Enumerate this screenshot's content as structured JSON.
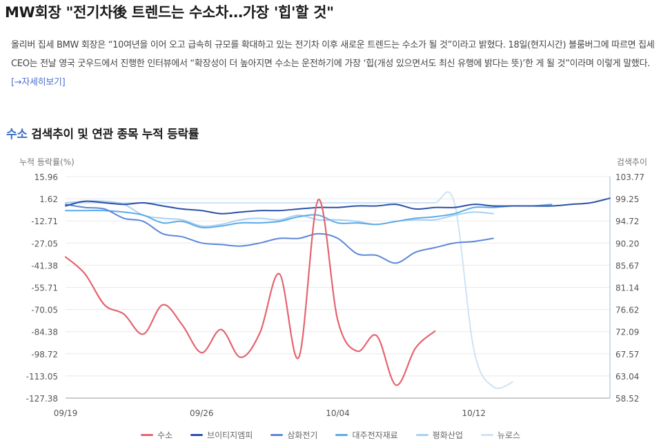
{
  "headline": "MW회장 \"전기차後 트렌드는 수소차…가장 '힙'할 것\"",
  "article": {
    "body": "올리버 집세 BMW 회장은 “10여년을 이어 오고 급속히 규모를 확대하고 있는 전기차 이후 새로운 트렌드는 수소가 될 것”이라고 밝혔다. 18일(현지시간) 블룸버그에 따르면 집세 CEO는 전날 영국 굿우드에서 진행한 인터뷰에서 “확장성이 더 높아지면 수소는 운전하기에 가장 ‘힙(개성 있으면서도 최신 유행에 밝다는 뜻)’한 게 될 것”이라며 이렇게 말했다.",
    "more_link": "[→자세히보기]"
  },
  "section_title": {
    "keyword": "수소",
    "rest": " 검색추이 및 연관 종목 누적 등락률"
  },
  "chart_data": {
    "type": "line",
    "ylabel": "누적 등락률(%)",
    "y2label": "검색추이",
    "ylim": [
      -127.38,
      15.96
    ],
    "y2lim": [
      58.52,
      103.77
    ],
    "y_ticks": [
      "15.96",
      "1.62",
      "-12.71",
      "-27.05",
      "-41.38",
      "-55.71",
      "-70.05",
      "-84.38",
      "-98.72",
      "-113.05",
      "-127.38"
    ],
    "y2_ticks": [
      "103.77",
      "99.25",
      "94.72",
      "90.20",
      "85.67",
      "81.14",
      "76.62",
      "72.09",
      "67.57",
      "63.04",
      "58.52"
    ],
    "x_tick_labels": [
      {
        "day": 0,
        "label": "09/19"
      },
      {
        "day": 7,
        "label": "09/26"
      },
      {
        "day": 14,
        "label": "10/04"
      },
      {
        "day": 21,
        "label": "10/12"
      }
    ],
    "x_range": [
      0,
      28
    ],
    "series": [
      {
        "name": "수소",
        "color": "#e4636f",
        "axis": "left",
        "width": 2.2,
        "x": [
          0,
          1,
          2,
          3,
          4,
          5,
          6,
          7,
          8,
          9,
          10,
          11,
          12,
          13,
          14,
          15,
          16,
          17,
          18,
          19,
          20,
          21,
          22,
          23,
          24,
          25,
          26
        ],
        "values": [
          -36,
          -47,
          -67,
          -73,
          -86,
          -67,
          -80,
          -98,
          -83,
          -101,
          -85,
          -47,
          -101,
          1,
          -77,
          -97,
          -87,
          -119,
          -95,
          -84,
          null,
          null,
          null,
          null,
          null,
          null,
          null
        ]
      },
      {
        "name": "브이티지엠피",
        "color": "#2a4fa8",
        "axis": "left",
        "width": 2,
        "x": [
          0,
          1,
          2,
          3,
          4,
          5,
          6,
          7,
          8,
          9,
          10,
          11,
          12,
          13,
          14,
          15,
          16,
          17,
          18,
          19,
          20,
          21,
          22,
          23,
          24,
          25,
          26,
          27,
          28
        ],
        "values": [
          -3,
          0,
          -1,
          -2,
          -1,
          -3,
          -5,
          -6,
          -8,
          -7,
          -6,
          -6,
          -5,
          -4,
          -4,
          -3,
          -3,
          -2,
          -5,
          -4,
          -4,
          -2,
          -3,
          -3,
          -3,
          -3,
          -2,
          -1,
          2
        ]
      },
      {
        "name": "삼화전기",
        "color": "#5b86d8",
        "axis": "left",
        "width": 2,
        "x": [
          0,
          1,
          2,
          3,
          4,
          5,
          6,
          7,
          8,
          9,
          10,
          11,
          12,
          13,
          14,
          15,
          16,
          17,
          18,
          19,
          20,
          21,
          22,
          23,
          24,
          25,
          26,
          27,
          28
        ],
        "values": [
          -2,
          -4,
          -5,
          -11,
          -13,
          -21,
          -23,
          -27,
          -28,
          -29,
          -27,
          -24,
          -24,
          -21,
          -24,
          -34,
          -35,
          -40,
          -33,
          -30,
          -27,
          -26,
          -24,
          null,
          null,
          null,
          null,
          null,
          null
        ]
      },
      {
        "name": "대주전자재료",
        "color": "#5aaae8",
        "axis": "left",
        "width": 2,
        "x": [
          0,
          1,
          2,
          3,
          4,
          5,
          6,
          7,
          8,
          9,
          10,
          11,
          12,
          13,
          14,
          15,
          16,
          17,
          18,
          19,
          20,
          21,
          22,
          23,
          24,
          25,
          26,
          27,
          28
        ],
        "values": [
          -6,
          -6,
          -6,
          -7,
          -9,
          -14,
          -13,
          -17,
          -16,
          -14,
          -14,
          -13,
          -10,
          -9,
          -14,
          -14,
          -15,
          -13,
          -11,
          -10,
          -8,
          -4,
          -4,
          -3,
          -3,
          -2,
          null,
          null,
          null
        ]
      },
      {
        "name": "평화산업",
        "color": "#a9d0f2",
        "axis": "left",
        "width": 2,
        "x": [
          0,
          1,
          2,
          3,
          4,
          5,
          6,
          7,
          8,
          9,
          10,
          11,
          12,
          13,
          14,
          15,
          16,
          17,
          18,
          19,
          20,
          21,
          22,
          23,
          24,
          25,
          26,
          27,
          28
        ],
        "values": [
          -1,
          0,
          0,
          -2,
          -9,
          -11,
          -12,
          -16,
          -15,
          -12,
          -11,
          -12,
          -9,
          -12,
          -12,
          -13,
          -15,
          -13,
          -12,
          -12,
          -9,
          -7,
          -8,
          null,
          null,
          null,
          null,
          null,
          null
        ]
      },
      {
        "name": "뉴로스",
        "color": "#cde3f5",
        "axis": "left",
        "width": 2,
        "x": [
          0,
          1,
          2,
          3,
          4,
          5,
          6,
          7,
          8,
          9,
          10,
          11,
          12,
          13,
          14,
          15,
          16,
          17,
          18,
          19,
          20,
          21,
          22,
          23,
          24,
          25,
          26,
          27,
          28
        ],
        "values": [
          -1,
          -1,
          -1,
          -1,
          -1,
          -1,
          -1,
          -1,
          -1,
          -1,
          -1,
          -1,
          -1,
          -1,
          -1,
          -1,
          -1,
          -1,
          -1,
          -1,
          -1,
          -96,
          -120,
          -117,
          null,
          null,
          null,
          null,
          null
        ]
      }
    ]
  }
}
